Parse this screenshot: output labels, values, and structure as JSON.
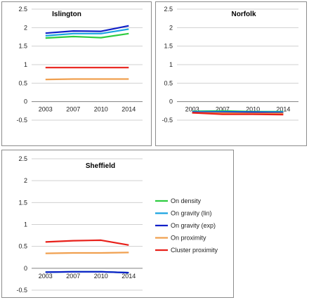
{
  "chart_data": {
    "type": "line",
    "categories": [
      "2003",
      "2007",
      "2010",
      "2014"
    ],
    "ylim": [
      -0.5,
      2.5
    ],
    "yticks": [
      "2.5",
      "2",
      "1.5",
      "1",
      "0.5",
      "0",
      "-0.5"
    ],
    "grid": true,
    "legend_placement": "right",
    "series_styles": [
      {
        "name": "On density",
        "color": "#2ecc40"
      },
      {
        "name": "On gravity (lin)",
        "color": "#1aa3e0"
      },
      {
        "name": "On gravity (exp)",
        "color": "#1020c8"
      },
      {
        "name": "On proximity",
        "color": "#f0a050"
      },
      {
        "name": "Cluster proximity",
        "color": "#e8201a"
      }
    ],
    "panels": [
      {
        "title": "Islington",
        "series": [
          {
            "name": "On density",
            "values": [
              1.72,
              1.76,
              1.73,
              1.84
            ]
          },
          {
            "name": "On gravity (lin)",
            "values": [
              1.78,
              1.84,
              1.84,
              1.96
            ]
          },
          {
            "name": "On gravity (exp)",
            "values": [
              1.85,
              1.91,
              1.9,
              2.05
            ]
          },
          {
            "name": "On proximity",
            "values": [
              0.6,
              0.61,
              0.61,
              0.61
            ]
          },
          {
            "name": "Cluster proximity",
            "values": [
              0.92,
              0.92,
              0.92,
              0.92
            ]
          }
        ]
      },
      {
        "title": "Norfolk",
        "series": [
          {
            "name": "On density",
            "values": [
              -0.26,
              -0.25,
              -0.27,
              -0.27
            ]
          },
          {
            "name": "On gravity (lin)",
            "values": [
              -0.27,
              -0.27,
              -0.28,
              -0.28
            ]
          },
          {
            "name": "On gravity (exp)",
            "values": [
              -0.29,
              -0.29,
              -0.29,
              -0.3
            ]
          },
          {
            "name": "On proximity",
            "values": [
              -0.3,
              -0.31,
              -0.32,
              -0.32
            ]
          },
          {
            "name": "Cluster proximity",
            "values": [
              -0.3,
              -0.34,
              -0.34,
              -0.35
            ]
          }
        ]
      },
      {
        "title": "Sheffield",
        "series": [
          {
            "name": "On density",
            "values": [
              -0.09,
              -0.08,
              -0.08,
              -0.1
            ]
          },
          {
            "name": "On gravity (lin)",
            "values": [
              -0.09,
              -0.08,
              -0.08,
              -0.1
            ]
          },
          {
            "name": "On gravity (exp)",
            "values": [
              -0.09,
              -0.08,
              -0.08,
              -0.1
            ]
          },
          {
            "name": "On proximity",
            "values": [
              0.34,
              0.35,
              0.35,
              0.36
            ]
          },
          {
            "name": "Cluster proximity",
            "values": [
              0.6,
              0.63,
              0.64,
              0.53
            ]
          }
        ]
      }
    ]
  }
}
